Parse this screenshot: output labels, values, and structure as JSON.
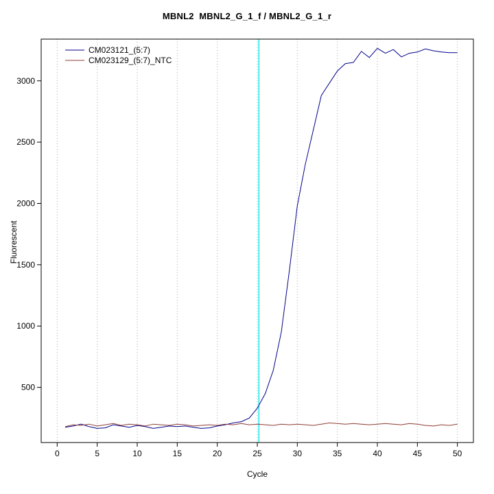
{
  "title": "MBNL2  MBNL2_G_1_f / MBNL2_G_1_r",
  "chart_data": {
    "type": "line",
    "title": "MBNL2  MBNL2_G_1_f / MBNL2_G_1_r",
    "xlabel": "Cycle",
    "ylabel": "Fluorescent",
    "xlim": [
      -2,
      52
    ],
    "ylim": [
      50,
      3340
    ],
    "x_ticks": [
      0,
      5,
      10,
      15,
      20,
      25,
      30,
      35,
      40,
      45,
      50
    ],
    "y_ticks": [
      500,
      1000,
      1500,
      2000,
      2500,
      3000
    ],
    "grid": "vertical-dotted",
    "grid_color": "#aaaaaa",
    "legend_position": "top-left",
    "threshold_cycle": 25.2,
    "threshold_color": "#00e5e5",
    "x": [
      1,
      2,
      3,
      4,
      5,
      6,
      7,
      8,
      9,
      10,
      11,
      12,
      13,
      14,
      15,
      16,
      17,
      18,
      19,
      20,
      21,
      22,
      23,
      24,
      25,
      26,
      27,
      28,
      29,
      30,
      31,
      32,
      33,
      34,
      35,
      36,
      37,
      38,
      39,
      40,
      41,
      42,
      43,
      44,
      45,
      46,
      47,
      48,
      49,
      50
    ],
    "series": [
      {
        "name": "CM023121_(5:7)",
        "color": "#00008b",
        "values": [
          175,
          185,
          200,
          180,
          165,
          170,
          195,
          185,
          175,
          190,
          180,
          165,
          175,
          185,
          180,
          185,
          175,
          165,
          170,
          185,
          195,
          210,
          220,
          250,
          330,
          450,
          640,
          950,
          1450,
          1980,
          2320,
          2600,
          2880,
          2980,
          3080,
          3140,
          3150,
          3240,
          3190,
          3265,
          3225,
          3255,
          3195,
          3225,
          3235,
          3260,
          3245,
          3235,
          3230,
          3230
        ]
      },
      {
        "name": "CM023129_(5:7)_NTC",
        "color": "#8b3a32",
        "values": [
          180,
          195,
          190,
          200,
          185,
          195,
          205,
          190,
          200,
          195,
          185,
          200,
          195,
          190,
          200,
          195,
          185,
          190,
          195,
          190,
          200,
          195,
          205,
          195,
          200,
          195,
          190,
          200,
          195,
          200,
          195,
          190,
          200,
          210,
          205,
          200,
          205,
          200,
          195,
          200,
          205,
          200,
          195,
          205,
          200,
          190,
          185,
          195,
          190,
          200
        ]
      }
    ]
  }
}
